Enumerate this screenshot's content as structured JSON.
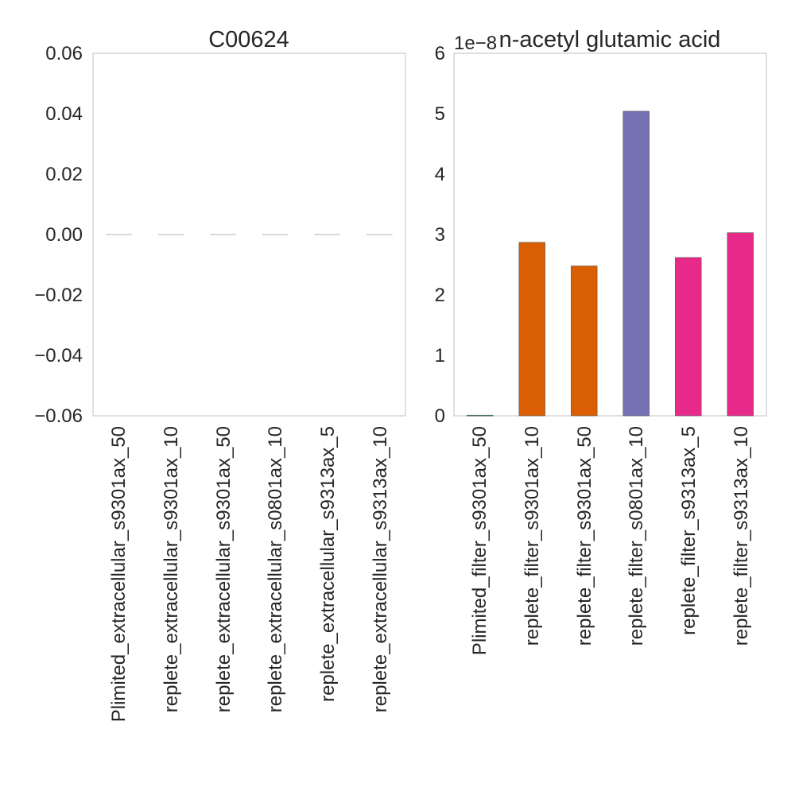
{
  "chart_data": [
    {
      "type": "bar",
      "title": "C00624",
      "xlabel": "",
      "ylabel": "",
      "ylim": [
        -0.06,
        0.06
      ],
      "yticks": [
        "0.06",
        "0.04",
        "0.02",
        "0.00",
        "−0.02",
        "−0.04",
        "−0.06"
      ],
      "ytick_values": [
        0.06,
        0.04,
        0.02,
        0.0,
        -0.02,
        -0.04,
        -0.06
      ],
      "grid": false,
      "categories": [
        "Plimited_extracellular_s9301ax_50",
        "replete_extracellular_s9301ax_10",
        "replete_extracellular_s9301ax_50",
        "replete_extracellular_s0801ax_10",
        "replete_extracellular_s9313ax_5",
        "replete_extracellular_s9313ax_10"
      ],
      "values": [
        0,
        0,
        0,
        0,
        0,
        0
      ],
      "colors": [
        "#cccccc",
        "#cccccc",
        "#cccccc",
        "#cccccc",
        "#cccccc",
        "#cccccc"
      ]
    },
    {
      "type": "bar",
      "title": "n-acetyl glutamic acid",
      "offset_text": "1e−8",
      "xlabel": "",
      "ylabel": "",
      "ylim": [
        0,
        6
      ],
      "yticks": [
        "6",
        "5",
        "4",
        "3",
        "2",
        "1",
        "0"
      ],
      "ytick_values": [
        6,
        5,
        4,
        3,
        2,
        1,
        0
      ],
      "grid": false,
      "categories": [
        "Plimited_filter_s9301ax_50",
        "replete_filter_s9301ax_10",
        "replete_filter_s9301ax_50",
        "replete_filter_s0801ax_10",
        "replete_filter_s9313ax_5",
        "replete_filter_s9313ax_10"
      ],
      "values": [
        0.01,
        2.87,
        2.48,
        5.04,
        2.62,
        3.03
      ],
      "colors": [
        "#1b9e77",
        "#d95f02",
        "#d95f02",
        "#7570b3",
        "#e7298a",
        "#e7298a"
      ]
    }
  ]
}
